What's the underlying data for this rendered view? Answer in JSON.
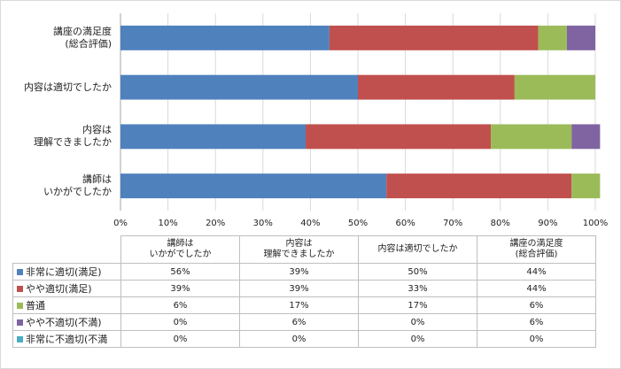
{
  "chart_data": {
    "type": "bar",
    "orientation": "horizontal",
    "stacked": true,
    "percent": true,
    "categories": [
      "講座の満足度\n(総合評価)",
      "内容は適切でしたか",
      "内容は\n理解できましたか",
      "講師は\nいかがでしたか"
    ],
    "series": [
      {
        "name": "非常に適切(満足)",
        "color": "#4f81bd",
        "values": [
          44,
          50,
          39,
          56
        ]
      },
      {
        "name": "やや適切(満足)",
        "color": "#c0504d",
        "values": [
          44,
          33,
          39,
          39
        ]
      },
      {
        "name": "普通",
        "color": "#9bbb59",
        "values": [
          6,
          17,
          17,
          6
        ]
      },
      {
        "name": "やや不適切(不満)",
        "color": "#8064a2",
        "values": [
          6,
          0,
          6,
          0
        ]
      },
      {
        "name": "非常に不適切(不満",
        "color": "#4bacc6",
        "values": [
          0,
          0,
          0,
          0
        ]
      }
    ],
    "xlim": [
      0,
      100
    ],
    "xticks": [
      "0%",
      "10%",
      "20%",
      "30%",
      "40%",
      "50%",
      "60%",
      "70%",
      "80%",
      "90%",
      "100%"
    ],
    "grid": true,
    "legend": "data-table",
    "table": {
      "columns": [
        "講師は\nいかがでしたか",
        "内容は\n理解できましたか",
        "内容は適切でしたか",
        "講座の満足度\n(総合評価)"
      ],
      "rows": [
        [
          "56%",
          "39%",
          "50%",
          "44%"
        ],
        [
          "39%",
          "39%",
          "33%",
          "44%"
        ],
        [
          "6%",
          "17%",
          "17%",
          "6%"
        ],
        [
          "0%",
          "6%",
          "0%",
          "6%"
        ],
        [
          "0%",
          "0%",
          "0%",
          "0%"
        ]
      ]
    }
  }
}
